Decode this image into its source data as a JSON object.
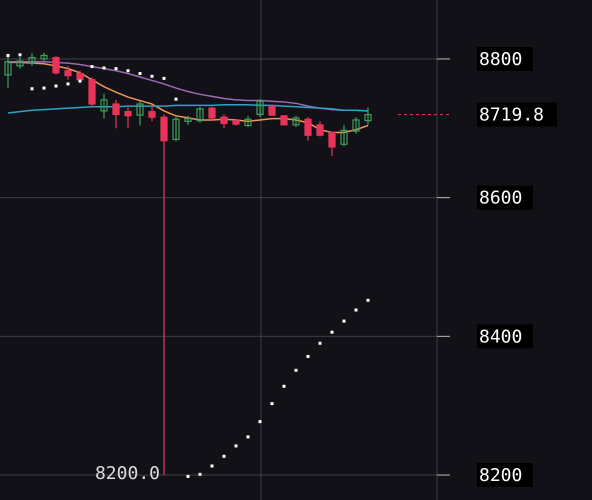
{
  "chart_data": {
    "type": "candlestick",
    "up_color": "#3f9f5b",
    "down_color": "#e8345a",
    "open": [
      8777,
      8790,
      8794,
      8800,
      8802,
      8783,
      8779,
      8770,
      8725,
      8735,
      8724,
      8719,
      8724,
      8716,
      8684,
      8710,
      8711,
      8729,
      8716,
      8711,
      8704,
      8720,
      8732,
      8718,
      8705,
      8713,
      8705,
      8694,
      8677,
      8696,
      8711
    ],
    "high": [
      8806,
      8803,
      8808,
      8809,
      8804,
      8790,
      8783,
      8773,
      8750,
      8741,
      8730,
      8739,
      8733,
      8720,
      8718,
      8718,
      8731,
      8731,
      8720,
      8713,
      8718,
      8742,
      8734,
      8719,
      8718,
      8716,
      8710,
      8695,
      8705,
      8716,
      8730
    ],
    "low": [
      8758,
      8786,
      8790,
      8797,
      8777,
      8770,
      8767,
      8731,
      8714,
      8700,
      8700,
      8704,
      8710,
      8200,
      8681,
      8705,
      8708,
      8711,
      8700,
      8704,
      8702,
      8716,
      8718,
      8704,
      8702,
      8682,
      8688,
      8660,
      8674,
      8692,
      8705
    ],
    "close": [
      8796,
      8797,
      8802,
      8805,
      8780,
      8776,
      8770,
      8735,
      8741,
      8720,
      8718,
      8735,
      8716,
      8682,
      8713,
      8714,
      8728,
      8715,
      8707,
      8706,
      8713,
      8739,
      8719,
      8705,
      8715,
      8690,
      8690,
      8673,
      8697,
      8712,
      8719.8
    ],
    "lines": [
      {
        "color": "#f0955a",
        "values": [
          8795,
          8795,
          8794,
          8793,
          8790,
          8786,
          8780,
          8770,
          8760,
          8752,
          8745,
          8740,
          8735,
          8725,
          8718,
          8715,
          8712,
          8712,
          8713,
          8712,
          8710,
          8712,
          8714,
          8714,
          8712,
          8708,
          8698,
          8694,
          8694,
          8698,
          8704
        ]
      },
      {
        "color": "#9a6bb5",
        "values": [
          8796,
          8796,
          8796,
          8796,
          8795,
          8794,
          8792,
          8789,
          8786,
          8783,
          8779,
          8774,
          8769,
          8764,
          8758,
          8753,
          8749,
          8746,
          8743,
          8741,
          8740,
          8740,
          8739,
          8738,
          8736,
          8732,
          8729,
          8727,
          8726,
          8726,
          8725
        ]
      },
      {
        "color": "#2aa3c4",
        "values": [
          8722,
          8724,
          8726,
          8727,
          8728,
          8729,
          8730,
          8731,
          8731,
          8731,
          8732,
          8732,
          8732,
          8732,
          8733,
          8733,
          8733,
          8733,
          8734,
          8734,
          8734,
          8733,
          8733,
          8732,
          8731,
          8730,
          8729,
          8728,
          8726,
          8726,
          8725
        ]
      }
    ],
    "dots": {
      "color": "#ffffff",
      "values": [
        8805,
        8806,
        8757,
        8758,
        8761,
        8764,
        8768,
        8789,
        8787,
        8786,
        8783,
        8779,
        8775,
        8772,
        8742,
        8198,
        8201,
        8213,
        8227,
        8242,
        8255,
        8277,
        8303,
        8328,
        8351,
        8371,
        8390,
        8406,
        8422,
        8438,
        8452
      ]
    },
    "ylim": [
      8164,
      8885
    ],
    "yticks": [
      8800,
      8600,
      8400,
      8200
    ],
    "grid": true,
    "last_price": 8719.8,
    "low_label": {
      "value": 8200,
      "label": "8200.0"
    }
  }
}
